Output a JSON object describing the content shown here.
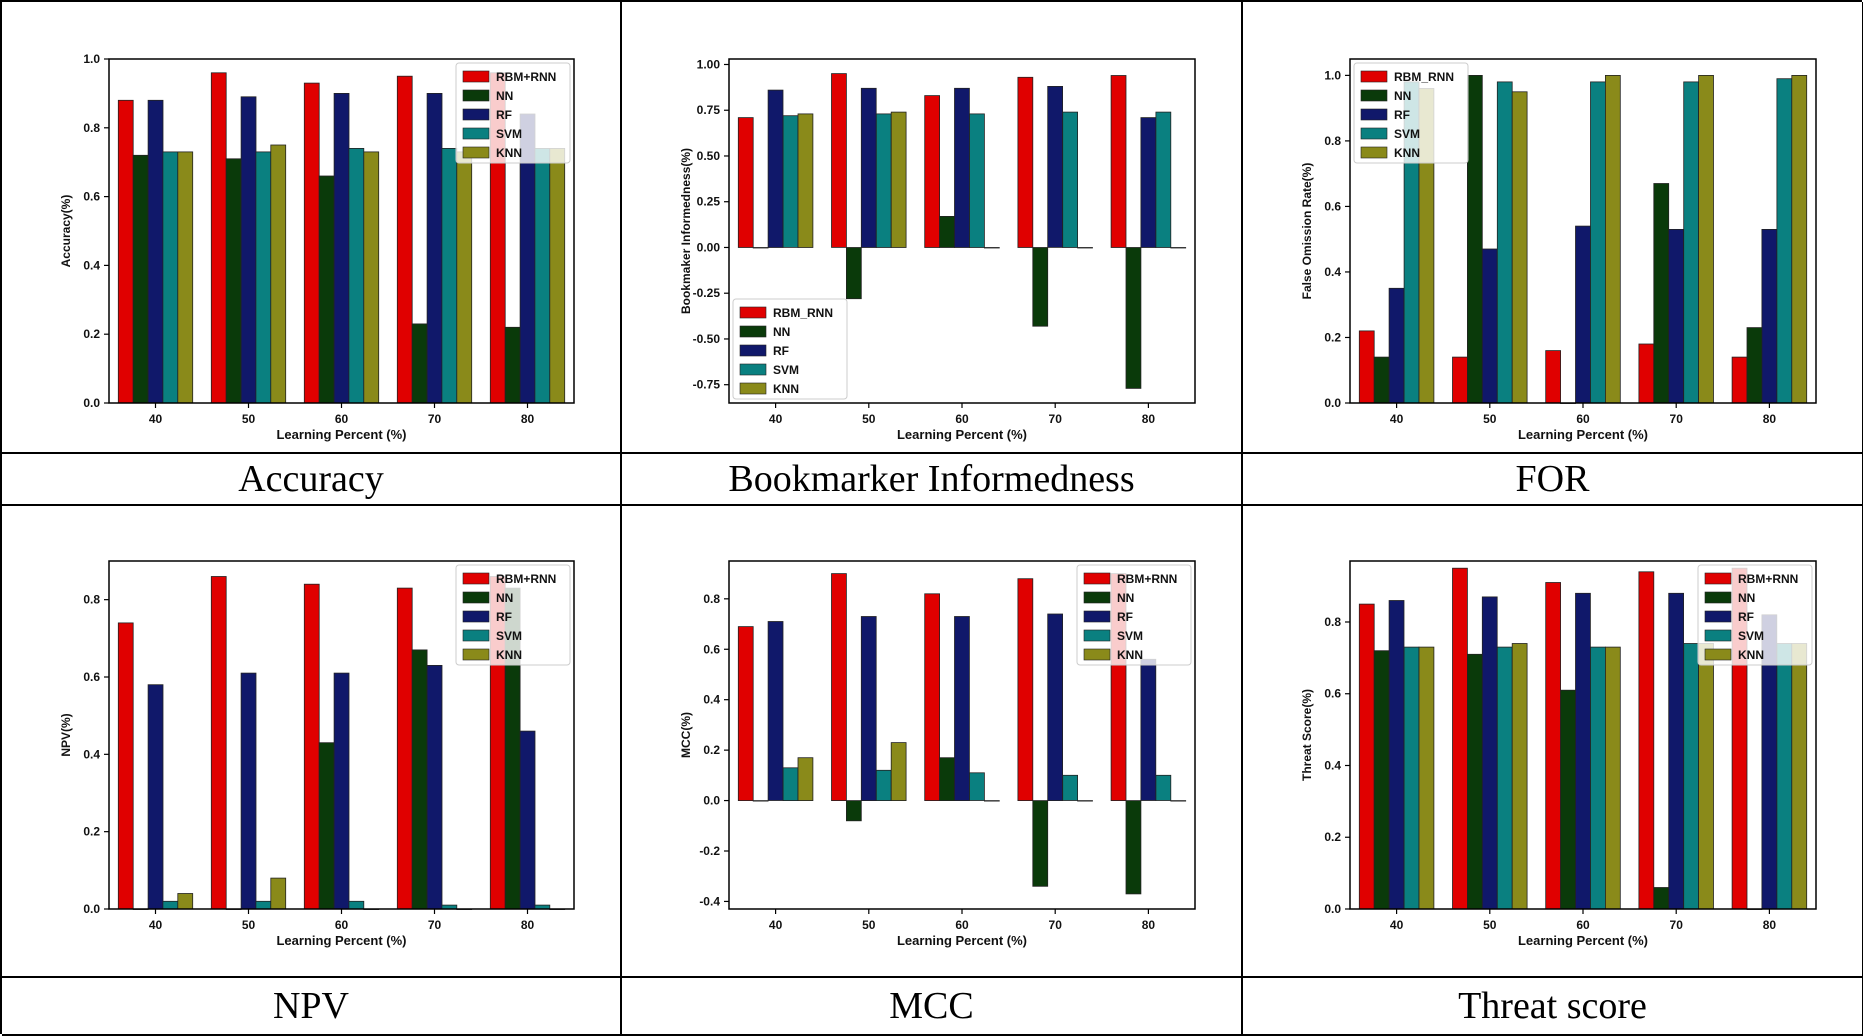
{
  "captions": [
    "Accuracy",
    "Bookmarker Informedness",
    "FOR",
    "NPV",
    "MCC",
    "Threat score"
  ],
  "colors": {
    "RBM": "#e00000",
    "NN": "#0a3a0a",
    "RF": "#10186a",
    "SVM": "#0a8080",
    "KNN": "#8a8a1a"
  },
  "chart_data": [
    {
      "type": "bar",
      "title": "",
      "xlabel": "Learning Percent (%)",
      "ylabel": "Accuracy(%)",
      "categories": [
        "40",
        "50",
        "60",
        "70",
        "80"
      ],
      "ylim": [
        0,
        1.0
      ],
      "yticks": [
        0.0,
        0.2,
        0.4,
        0.6,
        0.8,
        1.0
      ],
      "tick_decimals": 1,
      "legend_position": "top-right",
      "series": [
        {
          "name": "RBM+RNN",
          "color": "#e00000",
          "values": [
            0.88,
            0.96,
            0.93,
            0.95,
            0.96
          ]
        },
        {
          "name": "NN",
          "color": "#0a3a0a",
          "values": [
            0.72,
            0.71,
            0.66,
            0.23,
            0.22
          ]
        },
        {
          "name": "RF",
          "color": "#10186a",
          "values": [
            0.88,
            0.89,
            0.9,
            0.9,
            0.84
          ]
        },
        {
          "name": "SVM",
          "color": "#0a8080",
          "values": [
            0.73,
            0.73,
            0.74,
            0.74,
            0.74
          ]
        },
        {
          "name": "KNN",
          "color": "#8a8a1a",
          "values": [
            0.73,
            0.75,
            0.73,
            0.73,
            0.74
          ]
        }
      ]
    },
    {
      "type": "bar",
      "title": "",
      "xlabel": "Learning Percent (%)",
      "ylabel": "Bookmaker Informedness(%)",
      "categories": [
        "40",
        "50",
        "60",
        "70",
        "80"
      ],
      "ylim": [
        -0.85,
        1.03
      ],
      "yticks": [
        -0.75,
        -0.5,
        -0.25,
        0.0,
        0.25,
        0.5,
        0.75,
        1.0
      ],
      "tick_decimals": 2,
      "legend_position": "lower-left",
      "series": [
        {
          "name": "RBM_RNN",
          "color": "#e00000",
          "values": [
            0.71,
            0.95,
            0.83,
            0.93,
            0.94
          ]
        },
        {
          "name": "NN",
          "color": "#0a3a0a",
          "values": [
            0.0,
            -0.28,
            0.17,
            -0.43,
            -0.77
          ]
        },
        {
          "name": "RF",
          "color": "#10186a",
          "values": [
            0.86,
            0.87,
            0.87,
            0.88,
            0.71
          ]
        },
        {
          "name": "SVM",
          "color": "#0a8080",
          "values": [
            0.72,
            0.73,
            0.73,
            0.74,
            0.74
          ]
        },
        {
          "name": "KNN",
          "color": "#8a8a1a",
          "values": [
            0.73,
            0.74,
            0.0,
            0.0,
            0.0
          ]
        }
      ]
    },
    {
      "type": "bar",
      "title": "",
      "xlabel": "Learning Percent (%)",
      "ylabel": "False Omission Rate(%)",
      "categories": [
        "40",
        "50",
        "60",
        "70",
        "80"
      ],
      "ylim": [
        0,
        1.05
      ],
      "yticks": [
        0.0,
        0.2,
        0.4,
        0.6,
        0.8,
        1.0
      ],
      "tick_decimals": 1,
      "legend_position": "top-left",
      "series": [
        {
          "name": "RBM_RNN",
          "color": "#e00000",
          "values": [
            0.22,
            0.14,
            0.16,
            0.18,
            0.14
          ]
        },
        {
          "name": "NN",
          "color": "#0a3a0a",
          "values": [
            0.14,
            1.0,
            0.0,
            0.67,
            0.23
          ]
        },
        {
          "name": "RF",
          "color": "#10186a",
          "values": [
            0.35,
            0.47,
            0.54,
            0.53,
            0.53
          ]
        },
        {
          "name": "SVM",
          "color": "#0a8080",
          "values": [
            0.98,
            0.98,
            0.98,
            0.98,
            0.99
          ]
        },
        {
          "name": "KNN",
          "color": "#8a8a1a",
          "values": [
            0.96,
            0.95,
            1.0,
            1.0,
            1.0
          ]
        }
      ]
    },
    {
      "type": "bar",
      "title": "",
      "xlabel": "Learning Percent (%)",
      "ylabel": "NPV(%)",
      "categories": [
        "40",
        "50",
        "60",
        "70",
        "80"
      ],
      "ylim": [
        0,
        0.9
      ],
      "yticks": [
        0.0,
        0.2,
        0.4,
        0.6,
        0.8
      ],
      "tick_decimals": 1,
      "legend_position": "top-right",
      "series": [
        {
          "name": "RBM+RNN",
          "color": "#e00000",
          "values": [
            0.74,
            0.86,
            0.84,
            0.83,
            0.86
          ]
        },
        {
          "name": "NN",
          "color": "#0a3a0a",
          "values": [
            0.0,
            0.0,
            0.43,
            0.67,
            0.83
          ]
        },
        {
          "name": "RF",
          "color": "#10186a",
          "values": [
            0.58,
            0.61,
            0.61,
            0.63,
            0.46
          ]
        },
        {
          "name": "SVM",
          "color": "#0a8080",
          "values": [
            0.02,
            0.02,
            0.02,
            0.01,
            0.01
          ]
        },
        {
          "name": "KNN",
          "color": "#8a8a1a",
          "values": [
            0.04,
            0.08,
            0.0,
            0.0,
            0.0
          ]
        }
      ]
    },
    {
      "type": "bar",
      "title": "",
      "xlabel": "Learning Percent (%)",
      "ylabel": "MCC(%)",
      "categories": [
        "40",
        "50",
        "60",
        "70",
        "80"
      ],
      "ylim": [
        -0.43,
        0.95
      ],
      "yticks": [
        -0.4,
        -0.2,
        0.0,
        0.2,
        0.4,
        0.6,
        0.8
      ],
      "tick_decimals": 1,
      "legend_position": "top-right",
      "series": [
        {
          "name": "RBM+RNN",
          "color": "#e00000",
          "values": [
            0.69,
            0.9,
            0.82,
            0.88,
            0.9
          ]
        },
        {
          "name": "NN",
          "color": "#0a3a0a",
          "values": [
            0.0,
            -0.08,
            0.17,
            -0.34,
            -0.37
          ]
        },
        {
          "name": "RF",
          "color": "#10186a",
          "values": [
            0.71,
            0.73,
            0.73,
            0.74,
            0.56
          ]
        },
        {
          "name": "SVM",
          "color": "#0a8080",
          "values": [
            0.13,
            0.12,
            0.11,
            0.1,
            0.1
          ]
        },
        {
          "name": "KNN",
          "color": "#8a8a1a",
          "values": [
            0.17,
            0.23,
            0.0,
            0.0,
            0.0
          ]
        }
      ]
    },
    {
      "type": "bar",
      "title": "",
      "xlabel": "Learning Percent (%)",
      "ylabel": "Threat Score(%)",
      "categories": [
        "40",
        "50",
        "60",
        "70",
        "80"
      ],
      "ylim": [
        0,
        0.97
      ],
      "yticks": [
        0.0,
        0.2,
        0.4,
        0.6,
        0.8
      ],
      "tick_decimals": 1,
      "legend_position": "top-right",
      "series": [
        {
          "name": "RBM+RNN",
          "color": "#e00000",
          "values": [
            0.85,
            0.95,
            0.91,
            0.94,
            0.95
          ]
        },
        {
          "name": "NN",
          "color": "#0a3a0a",
          "values": [
            0.72,
            0.71,
            0.61,
            0.06,
            0.0
          ]
        },
        {
          "name": "RF",
          "color": "#10186a",
          "values": [
            0.86,
            0.87,
            0.88,
            0.88,
            0.82
          ]
        },
        {
          "name": "SVM",
          "color": "#0a8080",
          "values": [
            0.73,
            0.73,
            0.73,
            0.74,
            0.74
          ]
        },
        {
          "name": "KNN",
          "color": "#8a8a1a",
          "values": [
            0.73,
            0.74,
            0.73,
            0.74,
            0.74
          ]
        }
      ]
    }
  ]
}
